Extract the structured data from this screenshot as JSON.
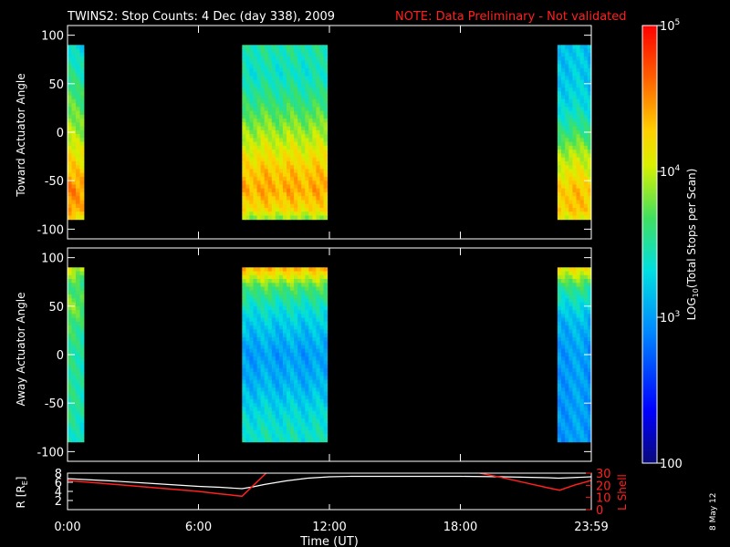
{
  "title": {
    "main": "TWINS2: Stop Counts:  4 Dec (day 338), 2009",
    "note": "NOTE: Data Preliminary - Not validated"
  },
  "stamp": "8 May 12",
  "colors": {
    "background": "#000000",
    "axes": "#ffffff",
    "note": "#ff2020",
    "l_shell": "#ff2020",
    "r_line": "#ffffff"
  },
  "chart_data": [
    {
      "type": "heatmap",
      "panel": "toward",
      "ylabel": "Toward Actuator Angle",
      "ylim": [
        -110,
        110
      ],
      "yticks": [
        "100",
        "50",
        "0",
        "-50",
        "-100"
      ],
      "yticks_values": [
        100,
        50,
        0,
        -50,
        -100
      ],
      "xlim_hours": [
        0,
        24
      ],
      "data_angle_range": [
        -88,
        90
      ],
      "blocks_hours": [
        [
          0.0,
          0.75
        ],
        [
          8.0,
          11.9
        ],
        [
          22.45,
          24.0
        ]
      ],
      "colorscale": "rainbow log10 counts, 100 to 1e5",
      "profile_angles": [
        90,
        60,
        30,
        0,
        -20,
        -40,
        -60,
        -80,
        -88
      ],
      "profiles_log10": [
        [
          3.3,
          3.5,
          3.7,
          3.9,
          4.1,
          4.3,
          4.5,
          4.4,
          4.2
        ],
        [
          3.5,
          3.4,
          3.6,
          3.9,
          4.1,
          4.3,
          4.4,
          4.2,
          3.9
        ],
        [
          3.2,
          3.2,
          3.3,
          3.6,
          3.9,
          4.1,
          4.3,
          4.3,
          4.1
        ]
      ]
    },
    {
      "type": "heatmap",
      "panel": "away",
      "ylabel": "Away Actuator Angle",
      "ylim": [
        -110,
        110
      ],
      "yticks": [
        "100",
        "50",
        "0",
        "-50",
        "-100"
      ],
      "yticks_values": [
        100,
        50,
        0,
        -50,
        -100
      ],
      "xlim_hours": [
        0,
        24
      ],
      "data_angle_range": [
        -88,
        90
      ],
      "blocks_hours": [
        [
          0.0,
          0.75
        ],
        [
          8.0,
          11.9
        ],
        [
          22.45,
          24.0
        ]
      ],
      "colorscale": "rainbow log10 counts, 100 to 1e5",
      "profile_angles": [
        90,
        70,
        50,
        30,
        0,
        -30,
        -60,
        -80,
        -88
      ],
      "profiles_log10": [
        [
          4.0,
          3.6,
          3.8,
          3.6,
          3.5,
          3.5,
          3.5,
          3.4,
          3.4
        ],
        [
          4.4,
          3.7,
          3.4,
          3.2,
          3.0,
          3.1,
          3.3,
          3.4,
          3.4
        ],
        [
          4.2,
          3.6,
          3.3,
          3.1,
          3.0,
          3.0,
          3.0,
          3.0,
          3.0
        ]
      ]
    },
    {
      "type": "line",
      "panel": "orbit",
      "ylabel": "R [R",
      "ylabel_sub": "E",
      "ylabel_end": "]",
      "ylim": [
        0,
        8
      ],
      "yticks": [
        "8",
        "6",
        "4",
        "2",
        "0"
      ],
      "yticks_values": [
        8,
        6,
        4,
        2,
        0
      ],
      "y2label": "L Shell",
      "y2lim": [
        0,
        30
      ],
      "y2ticks": [
        "30",
        "20",
        "10",
        "0"
      ],
      "y2ticks_values": [
        30,
        20,
        10,
        0
      ],
      "xlabel": "Time (UT)",
      "xticks": [
        "0:00",
        "6:00",
        "12:00",
        "18:00",
        "23:59"
      ],
      "xticks_values": [
        0,
        6,
        12,
        18,
        24
      ],
      "series": [
        {
          "axis": "left",
          "x": [
            0,
            2,
            4,
            6,
            7,
            8,
            8.5,
            9,
            10,
            11,
            12,
            13,
            14,
            16,
            18,
            20,
            22,
            22.5,
            23,
            24
          ],
          "y": [
            6.8,
            6.3,
            5.7,
            5.1,
            4.9,
            4.6,
            5.0,
            5.5,
            6.3,
            6.9,
            7.2,
            7.3,
            7.3,
            7.3,
            7.3,
            7.2,
            7.0,
            6.9,
            7.0,
            7.2
          ]
        },
        {
          "axis": "right",
          "segments": [
            {
              "x": [
                0,
                2,
                4,
                6,
                7,
                8,
                9.1
              ],
              "y": [
                24,
                21,
                18,
                15,
                13,
                11,
                30
              ]
            },
            {
              "x": [
                18.9,
                20,
                21,
                22,
                22.55,
                23.2,
                24
              ],
              "y": [
                30,
                26,
                22,
                18,
                16,
                20,
                24
              ]
            }
          ]
        }
      ]
    },
    {
      "type": "colorbar",
      "label_prefix": "LOG",
      "label_sub": "10",
      "label_suffix": "(Total Stops per Scan)",
      "range": [
        100,
        100000
      ],
      "ticks": [
        {
          "value": 100000,
          "base": "10",
          "exp": "5"
        },
        {
          "value": 10000,
          "base": "10",
          "exp": "4"
        },
        {
          "value": 1000,
          "base": "10",
          "exp": "3"
        },
        {
          "value": 100,
          "base": "100",
          "exp": ""
        }
      ]
    }
  ]
}
